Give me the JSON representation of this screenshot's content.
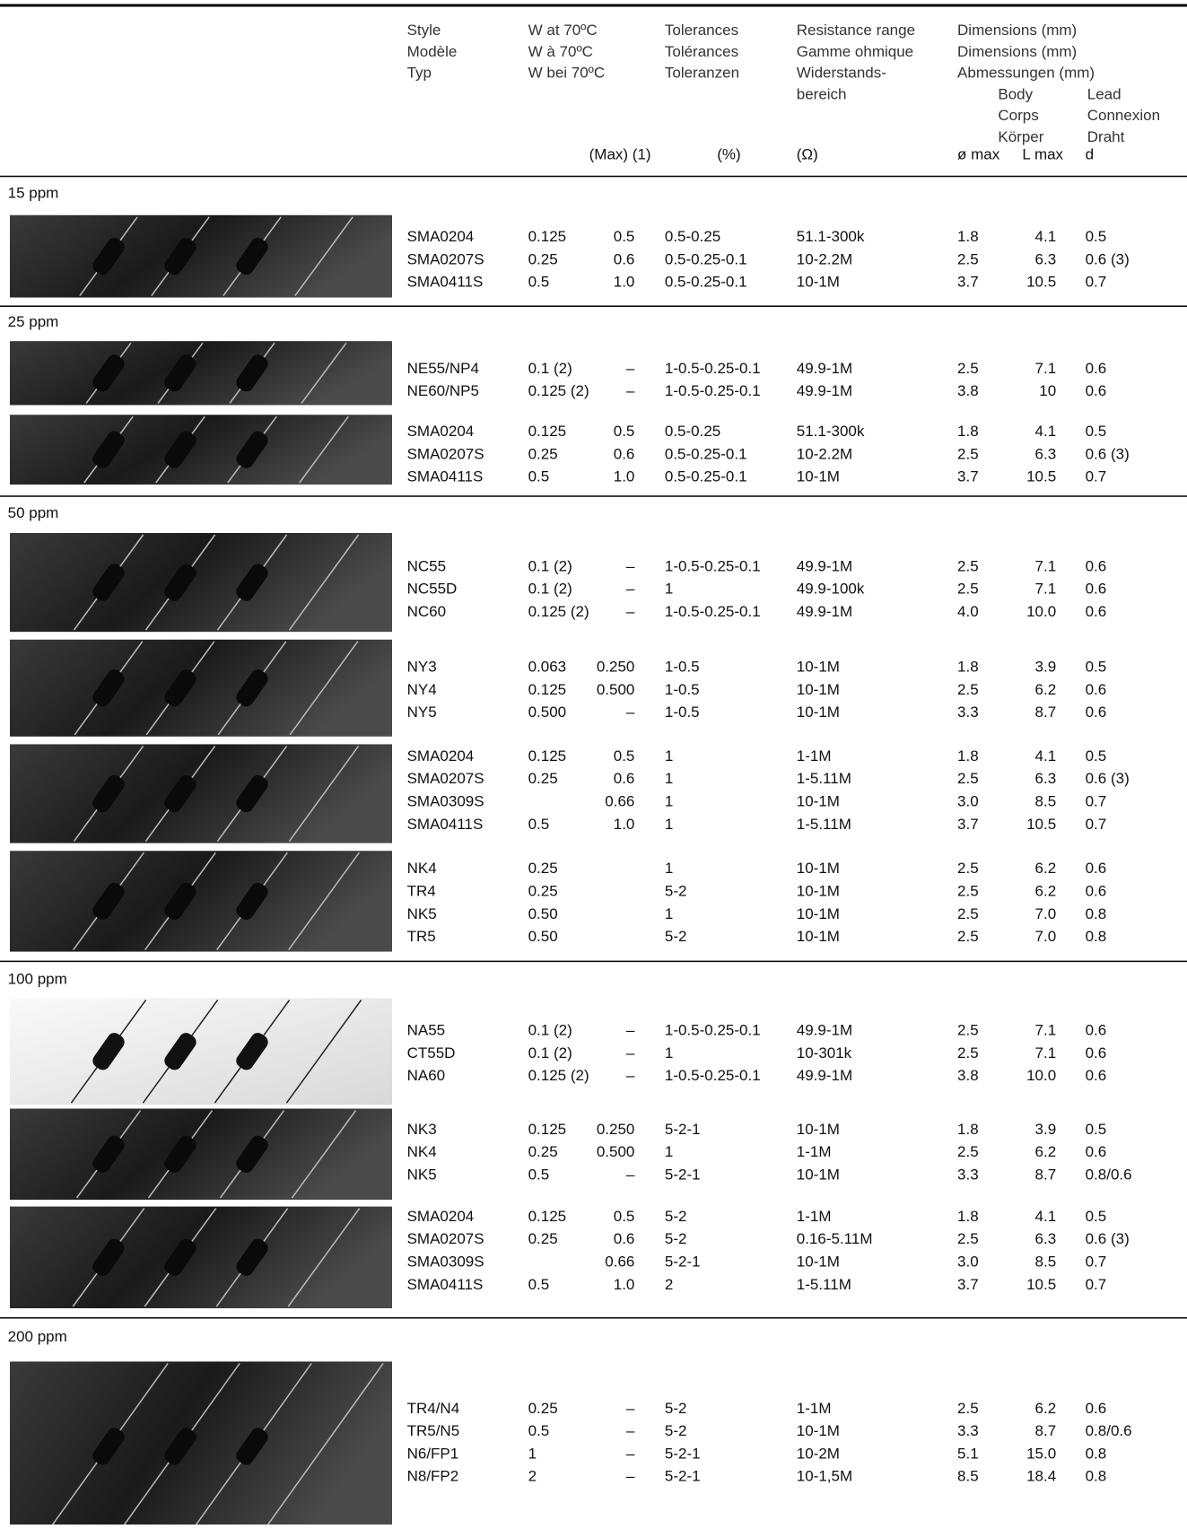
{
  "header": {
    "style": [
      "Style",
      "Modèle",
      "Typ"
    ],
    "watt": [
      "W at 70ºC",
      "W à 70ºC",
      "W bei 70ºC"
    ],
    "watt_unit": "(Max) (1)",
    "tolerance": [
      "Tolerances",
      "Tolérances",
      "Toleranzen"
    ],
    "tolerance_unit": "(%)",
    "range": [
      "Resistance range",
      "Gamme ohmique",
      "Widerstands-",
      "bereich"
    ],
    "range_unit": "(Ω)",
    "dimensions": [
      "Dimensions (mm)",
      "Dimensions (mm)",
      "Abmessungen (mm)"
    ],
    "body": [
      "Body",
      "Corps",
      "Körper"
    ],
    "lead": [
      "Lead",
      "Connexion",
      "Draht"
    ],
    "dim_cols": [
      "ø max",
      "L max",
      "d"
    ]
  },
  "sections": [
    {
      "label": "15 ppm",
      "groups": [
        {
          "rows": [
            [
              "SMA0204",
              "0.125",
              "0.5",
              "0.5-0.25",
              "51.1-300k",
              "1.8",
              "4.1",
              "0.5"
            ],
            [
              "SMA0207S",
              "0.25",
              "0.6",
              "0.5-0.25-0.1",
              "10-2.2M",
              "2.5",
              "6.3",
              "0.6 (3)"
            ],
            [
              "SMA0411S",
              "0.5",
              "1.0",
              "0.5-0.25-0.1",
              "10-1M",
              "3.7",
              "10.5",
              "0.7"
            ]
          ]
        }
      ]
    },
    {
      "label": "25 ppm",
      "groups": [
        {
          "rows": [
            [
              "NE55/NP4",
              "0.1 (2)",
              "–",
              "1-0.5-0.25-0.1",
              "49.9-1M",
              "2.5",
              "7.1",
              "0.6"
            ],
            [
              "NE60/NP5",
              "0.125 (2)",
              "–",
              "1-0.5-0.25-0.1",
              "49.9-1M",
              "3.8",
              "10",
              "0.6"
            ]
          ]
        },
        {
          "rows": [
            [
              "SMA0204",
              "0.125",
              "0.5",
              "0.5-0.25",
              "51.1-300k",
              "1.8",
              "4.1",
              "0.5"
            ],
            [
              "SMA0207S",
              "0.25",
              "0.6",
              "0.5-0.25-0.1",
              "10-2.2M",
              "2.5",
              "6.3",
              "0.6 (3)"
            ],
            [
              "SMA0411S",
              "0.5",
              "1.0",
              "0.5-0.25-0.1",
              "10-1M",
              "3.7",
              "10.5",
              "0.7"
            ]
          ]
        }
      ]
    },
    {
      "label": "50 ppm",
      "groups": [
        {
          "rows": [
            [
              "NC55",
              "0.1 (2)",
              "–",
              "1-0.5-0.25-0.1",
              "49.9-1M",
              "2.5",
              "7.1",
              "0.6"
            ],
            [
              "NC55D",
              "0.1 (2)",
              "–",
              "1",
              "49.9-100k",
              "2.5",
              "7.1",
              "0.6"
            ],
            [
              "NC60",
              "0.125 (2)",
              "–",
              "1-0.5-0.25-0.1",
              "49.9-1M",
              "4.0",
              "10.0",
              "0.6"
            ]
          ]
        },
        {
          "rows": [
            [
              "NY3",
              "0.063",
              "0.250",
              "1-0.5",
              "10-1M",
              "1.8",
              "3.9",
              "0.5"
            ],
            [
              "NY4",
              "0.125",
              "0.500",
              "1-0.5",
              "10-1M",
              "2.5",
              "6.2",
              "0.6"
            ],
            [
              "NY5",
              "0.500",
              "–",
              "1-0.5",
              "10-1M",
              "3.3",
              "8.7",
              "0.6"
            ]
          ]
        },
        {
          "rows": [
            [
              "SMA0204",
              "0.125",
              "0.5",
              "1",
              "1-1M",
              "1.8",
              "4.1",
              "0.5"
            ],
            [
              "SMA0207S",
              "0.25",
              "0.6",
              "1",
              "1-5.11M",
              "2.5",
              "6.3",
              "0.6 (3)"
            ],
            [
              "SMA0309S",
              null,
              "0.66",
              "1",
              "10-1M",
              "3.0",
              "8.5",
              "0.7"
            ],
            [
              "SMA0411S",
              "0.5",
              "1.0",
              "1",
              "1-5.11M",
              "3.7",
              "10.5",
              "0.7"
            ]
          ]
        },
        {
          "rows": [
            [
              "NK4",
              "0.25",
              null,
              "1",
              "10-1M",
              "2.5",
              "6.2",
              "0.6"
            ],
            [
              "TR4",
              "0.25",
              null,
              "5-2",
              "10-1M",
              "2.5",
              "6.2",
              "0.6"
            ],
            [
              "NK5",
              "0.50",
              null,
              "1",
              "10-1M",
              "2.5",
              "7.0",
              "0.8"
            ],
            [
              "TR5",
              "0.50",
              null,
              "5-2",
              "10-1M",
              "2.5",
              "7.0",
              "0.8"
            ]
          ]
        }
      ]
    },
    {
      "label": "100 ppm",
      "groups": [
        {
          "rows": [
            [
              "NA55",
              "0.1 (2)",
              "–",
              "1-0.5-0.25-0.1",
              "49.9-1M",
              "2.5",
              "7.1",
              "0.6"
            ],
            [
              "CT55D",
              "0.1 (2)",
              "–",
              "1",
              "10-301k",
              "2.5",
              "7.1",
              "0.6"
            ],
            [
              "NA60",
              "0.125 (2)",
              "–",
              "1-0.5-0.25-0.1",
              "49.9-1M",
              "3.8",
              "10.0",
              "0.6"
            ]
          ]
        },
        {
          "rows": [
            [
              "NK3",
              "0.125",
              "0.250",
              "5-2-1",
              "10-1M",
              "1.8",
              "3.9",
              "0.5"
            ],
            [
              "NK4",
              "0.25",
              "0.500",
              "1",
              "1-1M",
              "2.5",
              "6.2",
              "0.6"
            ],
            [
              "NK5",
              "0.5",
              "–",
              "5-2-1",
              "10-1M",
              "3.3",
              "8.7",
              "0.8/0.6"
            ]
          ]
        },
        {
          "rows": [
            [
              "SMA0204",
              "0.125",
              "0.5",
              "5-2",
              "1-1M",
              "1.8",
              "4.1",
              "0.5"
            ],
            [
              "SMA0207S",
              "0.25",
              "0.6",
              "5-2",
              "0.16-5.11M",
              "2.5",
              "6.3",
              "0.6 (3)"
            ],
            [
              "SMA0309S",
              null,
              "0.66",
              "5-2-1",
              "10-1M",
              "3.0",
              "8.5",
              "0.7"
            ],
            [
              "SMA0411S",
              "0.5",
              "1.0",
              "2",
              "1-5.11M",
              "3.7",
              "10.5",
              "0.7"
            ]
          ]
        }
      ]
    },
    {
      "label": "200 ppm",
      "groups": [
        {
          "rows": [
            [
              "TR4/N4",
              "0.25",
              "–",
              "5-2",
              "1-1M",
              "2.5",
              "6.2",
              "0.6"
            ],
            [
              "TR5/N5",
              "0.5",
              "–",
              "5-2",
              "10-1M",
              "3.3",
              "8.7",
              "0.8/0.6"
            ],
            [
              "N6/FP1",
              "1",
              "–",
              "5-2-1",
              "10-2M",
              "5.1",
              "15.0",
              "0.8"
            ],
            [
              "N8/FP2",
              "2",
              "–",
              "5-2-1",
              "10-1,5M",
              "8.5",
              "18.4",
              "0.8"
            ]
          ]
        }
      ]
    }
  ]
}
